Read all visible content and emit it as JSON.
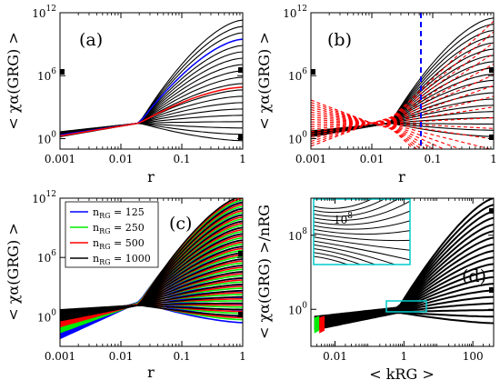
{
  "chart_data": [
    {
      "panel_label": "(a)",
      "type": "line",
      "xlabel": "r",
      "ylabel": "< χα(GRG) >",
      "x_scale": "log",
      "y_scale": "log",
      "xlim": [
        0.001,
        1
      ],
      "ylim": [
        0.1,
        1000000000000
      ],
      "x_ticks": [
        "0.001",
        "0.01",
        "0.1",
        "1"
      ],
      "y_ticks": [
        {
          "base": "10",
          "exp": "0"
        },
        {
          "base": "10",
          "exp": "6"
        },
        {
          "base": "10",
          "exp": "12"
        }
      ],
      "series": [
        {
          "color": "#000000",
          "n_curves": 20,
          "x": [
            0.001,
            0.02,
            1
          ],
          "y": [
            3.0,
            30,
            100000000000
          ]
        },
        {
          "color": "#0000ff",
          "x": [
            0.001,
            0.02,
            1
          ],
          "y": [
            2.2,
            30,
            3000000000
          ]
        },
        {
          "color": "#ff0000",
          "x": [
            0.001,
            0.02,
            1
          ],
          "y": [
            1.8,
            30,
            80000
          ]
        }
      ]
    },
    {
      "panel_label": "(b)",
      "type": "line",
      "xlabel": "r",
      "ylabel": "< χα(GRG) >",
      "x_scale": "log",
      "y_scale": "log",
      "xlim": [
        0.001,
        1
      ],
      "ylim": [
        0.1,
        1000000000000
      ],
      "x_ticks": [
        "0.001",
        "0.01",
        "0.1",
        "1"
      ],
      "y_ticks": [
        {
          "base": "10",
          "exp": "0"
        },
        {
          "base": "10",
          "exp": "6"
        },
        {
          "base": "10",
          "exp": "12"
        }
      ],
      "vertical_line": {
        "x": 0.06,
        "color": "#0000ff",
        "style": "dashed"
      },
      "series": [
        {
          "color": "#000000",
          "n_curves": 20,
          "style": "solid"
        },
        {
          "color": "#ff0000",
          "n_curves": 20,
          "style": "dashed"
        }
      ]
    },
    {
      "panel_label": "(c)",
      "type": "line",
      "xlabel": "r",
      "ylabel": "< χα(GRG) >",
      "x_scale": "log",
      "y_scale": "log",
      "xlim": [
        0.001,
        1
      ],
      "ylim": [
        0.001,
        1000000000000
      ],
      "x_ticks": [
        "0.001",
        "0.01",
        "0.1",
        "1"
      ],
      "y_ticks": [
        {
          "base": "10",
          "exp": "0"
        },
        {
          "base": "10",
          "exp": "6"
        },
        {
          "base": "10",
          "exp": "12"
        }
      ],
      "legend": {
        "placement": "top-left"
      },
      "series": [
        {
          "name": "nRG = 125",
          "label_base": "n",
          "label_sub": "RG",
          "label_value": " = 125",
          "color": "#0000ff",
          "n_curves": 20
        },
        {
          "name": "nRG = 250",
          "label_base": "n",
          "label_sub": "RG",
          "label_value": " = 250",
          "color": "#00ee00",
          "n_curves": 20
        },
        {
          "name": "nRG = 500",
          "label_base": "n",
          "label_sub": "RG",
          "label_value": " = 500",
          "color": "#ff0000",
          "n_curves": 20
        },
        {
          "name": "nRG = 1000",
          "label_base": "n",
          "label_sub": "RG",
          "label_value": " = 1000",
          "color": "#000000",
          "n_curves": 20
        }
      ]
    },
    {
      "panel_label": "(d)",
      "type": "line",
      "xlabel": "< kRG >",
      "ylabel": "< χα(GRG) >/nRG",
      "x_scale": "log",
      "y_scale": "log",
      "xlim": [
        0.002,
        400
      ],
      "ylim": [
        0.0001,
        1000000000000
      ],
      "x_ticks": [
        "0.01",
        "1",
        "100"
      ],
      "y_ticks": [
        {
          "base": "10",
          "exp": "0"
        },
        {
          "base": "10",
          "exp": "8"
        }
      ],
      "inset": {
        "y_tick": {
          "base": "10",
          "exp": "8"
        },
        "zoom_region_x": [
          0.4,
          2.0
        ],
        "border_color": "#00cccc"
      },
      "series": [
        {
          "color": "#000000",
          "n_curves": 20
        },
        {
          "color": "#ff0000",
          "x_range": [
            0.0035,
            0.005
          ]
        },
        {
          "color": "#00ee00",
          "x_range": [
            0.0025,
            0.0035
          ]
        }
      ]
    }
  ]
}
